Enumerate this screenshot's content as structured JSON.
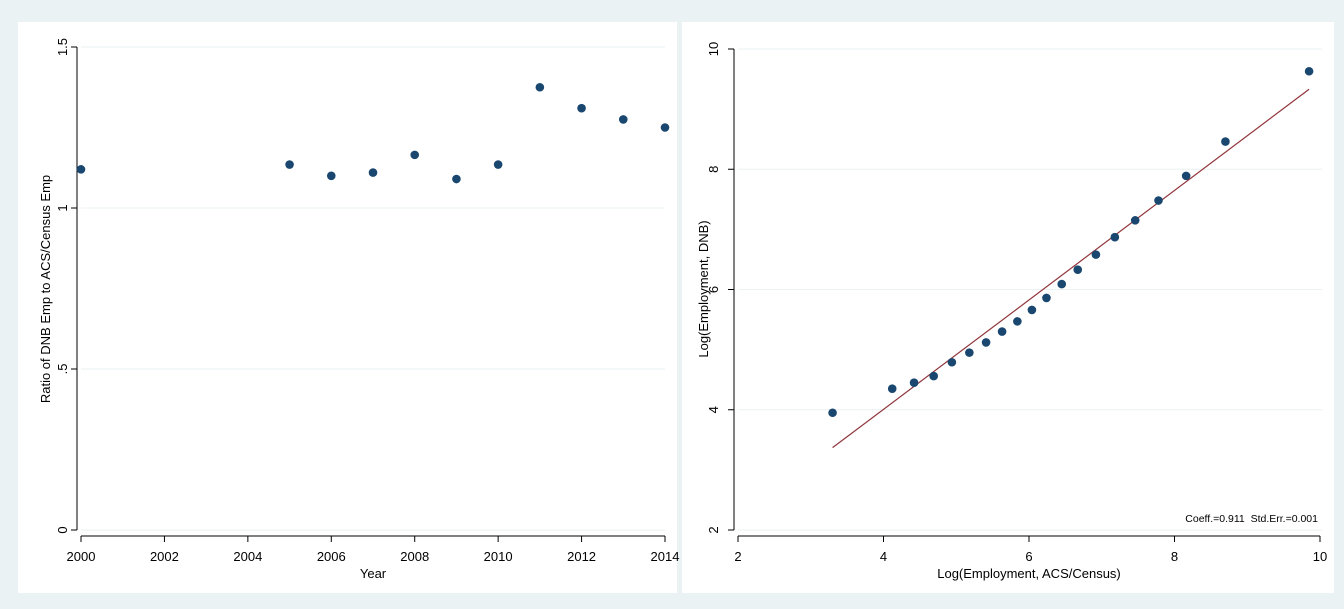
{
  "colors": {
    "background": "#eaf2f3",
    "plot_background": "#ffffff",
    "marker": "#1a476f",
    "fit_line": "#90353b",
    "gridline": "#eaf2f3",
    "axis": "#000000"
  },
  "chart_data": [
    {
      "type": "scatter",
      "title": "",
      "xlabel": "Year",
      "ylabel": "Ratio of DNB Emp to ACS/Census Emp",
      "xlim": [
        2000,
        2014
      ],
      "ylim": [
        0,
        1.5
      ],
      "xticks": [
        2000,
        2002,
        2004,
        2006,
        2008,
        2010,
        2012,
        2014
      ],
      "yticks": [
        0,
        0.5,
        1,
        1.5
      ],
      "xtick_labels": [
        "2000",
        "2002",
        "2004",
        "2006",
        "2008",
        "2010",
        "2012",
        "2014"
      ],
      "ytick_labels": [
        "0",
        ".5",
        "1",
        "1.5"
      ],
      "grid": true,
      "series": [
        {
          "x": [
            2000,
            2005,
            2006,
            2007,
            2008,
            2009,
            2010,
            2011,
            2012,
            2013,
            2014
          ],
          "y": [
            1.12,
            1.135,
            1.1,
            1.11,
            1.165,
            1.09,
            1.135,
            1.375,
            1.31,
            1.275,
            1.25
          ]
        }
      ]
    },
    {
      "type": "scatter",
      "title": "",
      "xlabel": "Log(Employment, ACS/Census)",
      "ylabel": "Log(Employment, DNB)",
      "xlim": [
        2,
        10
      ],
      "ylim": [
        2,
        10
      ],
      "xticks": [
        2,
        4,
        6,
        8,
        10
      ],
      "yticks": [
        2,
        4,
        6,
        8,
        10
      ],
      "xtick_labels": [
        "2",
        "4",
        "6",
        "8",
        "10"
      ],
      "ytick_labels": [
        "2",
        "4",
        "6",
        "8",
        "10"
      ],
      "grid": true,
      "annotation": "Coeff.=0.911  Std.Err.=0.001",
      "series": [
        {
          "x": [
            3.3,
            4.12,
            4.42,
            4.69,
            4.94,
            5.18,
            5.41,
            5.63,
            5.84,
            6.04,
            6.24,
            6.45,
            6.67,
            6.92,
            7.18,
            7.46,
            7.78,
            8.16,
            8.7,
            9.85
          ],
          "y": [
            3.95,
            4.35,
            4.45,
            4.56,
            4.79,
            4.95,
            5.12,
            5.3,
            5.47,
            5.66,
            5.86,
            6.09,
            6.33,
            6.58,
            6.87,
            7.15,
            7.48,
            7.89,
            8.46,
            9.63
          ]
        }
      ],
      "fit_line": {
        "x": [
          3.3,
          9.85
        ],
        "y": [
          3.37,
          9.33
        ]
      }
    }
  ]
}
